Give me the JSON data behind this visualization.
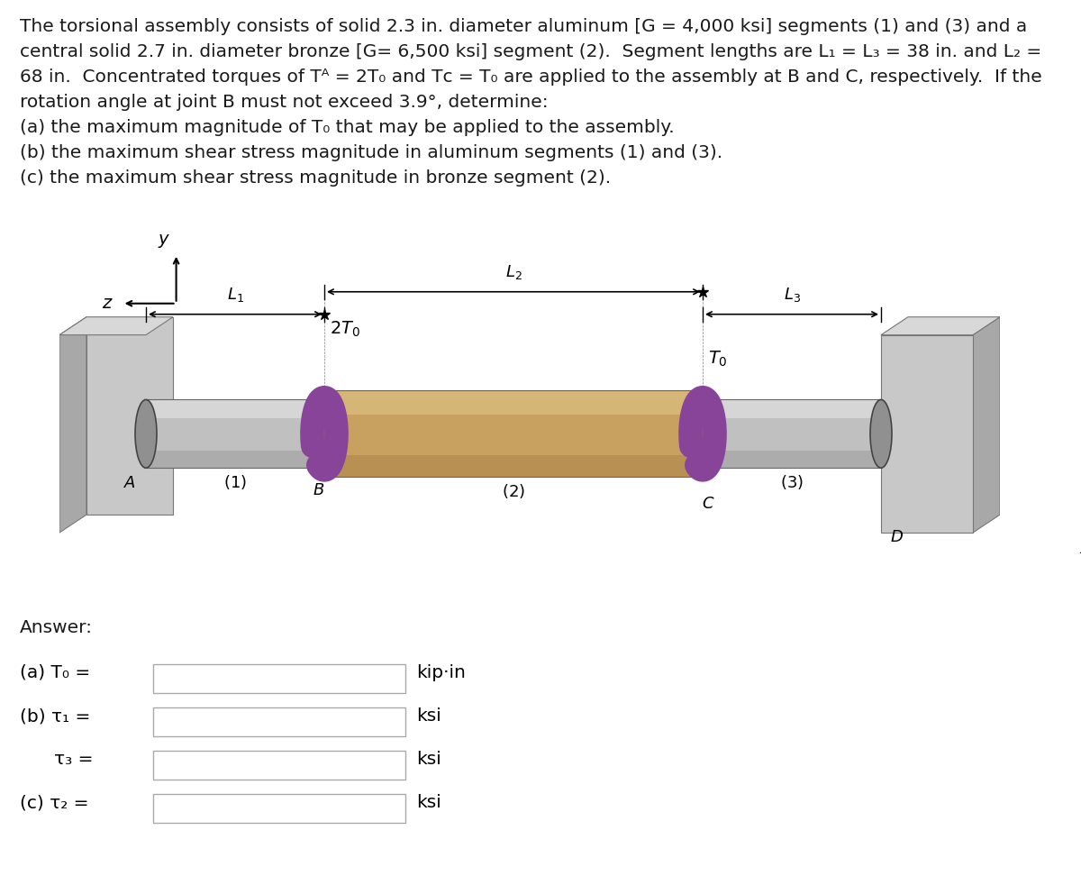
{
  "bg_color": "#ffffff",
  "text_color": "#1a1a1a",
  "problem_lines": [
    "The torsional assembly consists of solid 2.3 in. diameter aluminum [G = 4,000 ksi] segments (1) and (3) and a",
    "central solid 2.7 in. diameter bronze [G= 6,500 ksi] segment (2).  Segment lengths are L₁ = L₃ = 38 in. and L₂ =",
    "68 in.  Concentrated torques of Tᴬ = 2T₀ and Tᴄ = T₀ are applied to the assembly at B and C, respectively.  If the",
    "rotation angle at joint B must not exceed 3.9°, determine:",
    "(a) the maximum magnitude of T₀ that may be applied to the assembly.",
    "(b) the maximum shear stress magnitude in aluminum segments (1) and (3).",
    "(c) the maximum shear stress magnitude in bronze segment (2)."
  ],
  "answer_label": "Answer:",
  "labels": [
    "(a) T₀ =",
    "(b) τ₁ =",
    "τ₃ =",
    "(c) τ₂ ="
  ],
  "units": [
    "kip·in",
    "ksi",
    "ksi",
    "ksi"
  ],
  "wall_color_side": "#a8a8a8",
  "wall_color_front": "#c8c8c8",
  "wall_color_top": "#d8d8d8",
  "alum_color": "#c0c0c0",
  "alum_highlight": "#e0e0e0",
  "alum_dark": "#909090",
  "bronze_color": "#c8a060",
  "bronze_highlight": "#ddc080",
  "bronze_dark": "#a07840",
  "torque_color": "#884499",
  "arrow_color": "#333333"
}
